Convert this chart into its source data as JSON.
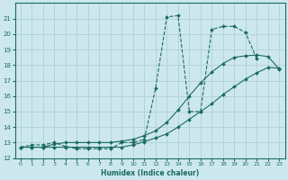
{
  "title": "",
  "xlabel": "Humidex (Indice chaleur)",
  "bg_color": "#cde8ed",
  "grid_color": "#b0d4da",
  "line_color": "#1a6b60",
  "xlim": [
    -0.5,
    23.5
  ],
  "ylim": [
    12,
    22
  ],
  "xticks": [
    0,
    1,
    2,
    3,
    4,
    5,
    6,
    7,
    8,
    9,
    10,
    11,
    12,
    13,
    14,
    15,
    16,
    17,
    18,
    19,
    20,
    21,
    22,
    23
  ],
  "yticks": [
    12,
    13,
    14,
    15,
    16,
    17,
    18,
    19,
    20,
    21
  ],
  "line1_x": [
    0,
    1,
    2,
    3,
    4,
    5,
    6,
    7,
    8,
    9,
    10,
    11,
    12,
    13,
    14,
    15,
    16,
    17,
    18,
    19,
    20,
    21
  ],
  "line1_y": [
    12.7,
    12.85,
    12.85,
    13.0,
    12.75,
    12.6,
    12.6,
    12.6,
    12.6,
    13.0,
    13.0,
    13.2,
    16.5,
    21.1,
    21.2,
    15.0,
    15.0,
    20.3,
    20.5,
    20.5,
    20.1,
    18.4
  ],
  "line2_x": [
    0,
    1,
    2,
    3,
    4,
    5,
    6,
    7,
    8,
    9,
    10,
    11,
    12,
    13,
    14,
    15,
    16,
    17,
    18,
    19,
    20,
    21,
    22,
    23
  ],
  "line2_y": [
    12.7,
    12.7,
    12.7,
    12.7,
    12.7,
    12.7,
    12.7,
    12.7,
    12.7,
    12.7,
    12.85,
    13.05,
    13.3,
    13.55,
    14.0,
    14.5,
    15.0,
    15.5,
    16.1,
    16.6,
    17.1,
    17.5,
    17.85,
    17.8
  ],
  "line3_x": [
    0,
    1,
    2,
    3,
    4,
    5,
    6,
    7,
    8,
    9,
    10,
    11,
    12,
    13,
    14,
    15,
    16,
    17,
    18,
    19,
    20,
    21,
    22,
    23
  ],
  "line3_y": [
    12.7,
    12.7,
    12.7,
    12.9,
    13.0,
    13.0,
    13.0,
    13.0,
    13.0,
    13.1,
    13.2,
    13.45,
    13.75,
    14.3,
    15.1,
    16.0,
    16.85,
    17.55,
    18.1,
    18.5,
    18.6,
    18.65,
    18.55,
    17.75
  ]
}
